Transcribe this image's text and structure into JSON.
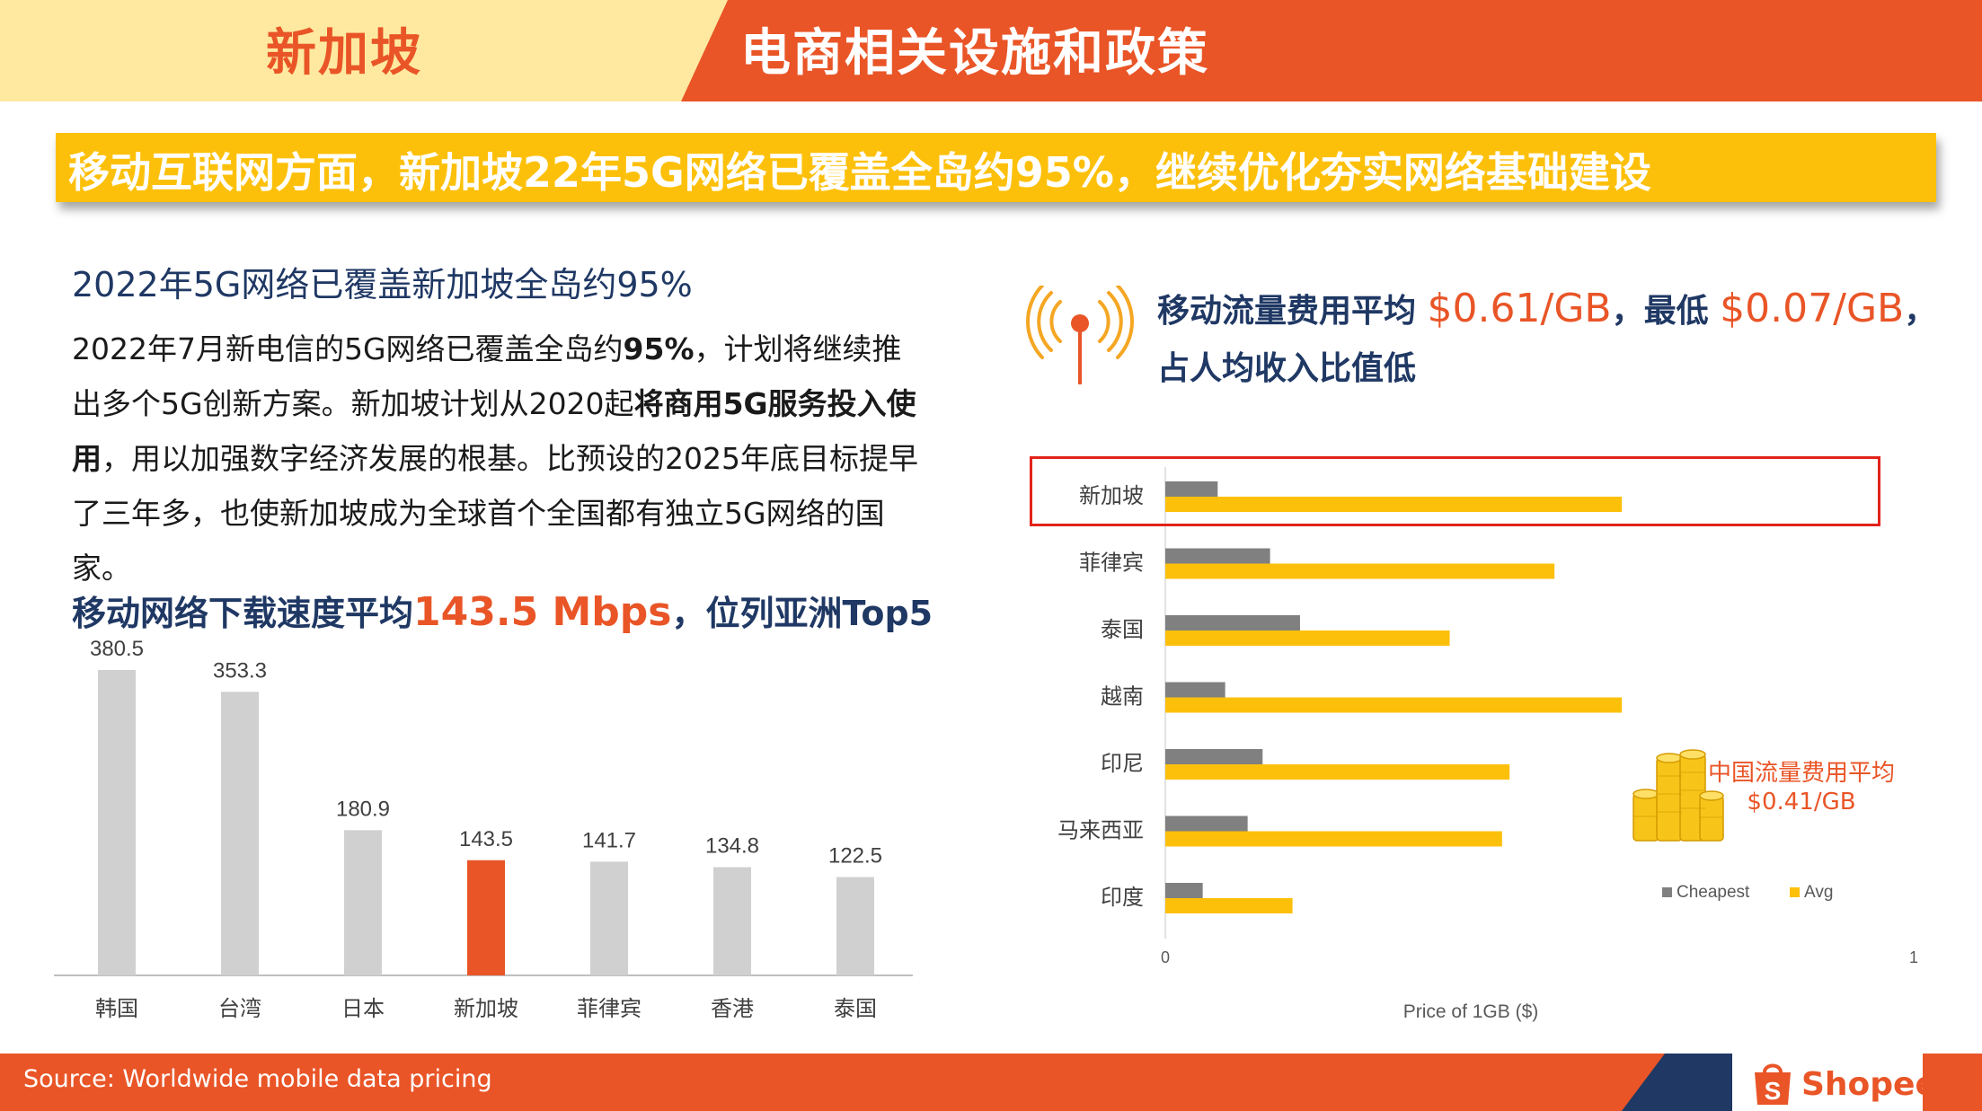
{
  "header": {
    "country": "新加坡",
    "title": "电商相关设施和政策"
  },
  "banner": {
    "text": "移动互联网方面，新加坡22年5G网络已覆盖全岛约95%，继续优化夯实网络基础建设"
  },
  "left": {
    "subheading": "2022年5G网络已覆盖新加坡全岛约95%",
    "para": {
      "p1": "2022年7月新电信的5G网络已覆盖全岛约",
      "b1": "95%",
      "p2": "，计划将继续推出多个5G创新方案。新加坡计划从2020起",
      "b2": "将商用5G服务投入使用",
      "p3": "，用以加强数字经济发展的根基。比预设的2025年底目标提早了三年多，也使新加坡成为全球首个全国都有独立5G网络的国家。"
    },
    "speed_heading_pre": "移动网络下载速度平均",
    "speed_heading_value": "143.5 Mbps",
    "speed_heading_post": "，位列亚洲Top5"
  },
  "right": {
    "fee_line1_pre": "移动流量费用平均 ",
    "fee_avg": "$0.61/GB",
    "fee_mid": "，最低 ",
    "fee_min": "$0.07/GB",
    "fee_line1_post": "，",
    "fee_line2": "占人均收入比值低",
    "china_note_line1": "中国流量费用平均",
    "china_note_line2": "$0.41/GB"
  },
  "footer": {
    "source": "Source: Worldwide mobile data pricing",
    "brand": "Shopee"
  },
  "colors": {
    "orange": "#e95527",
    "yellow": "#fdc00a",
    "navy": "#1f3864",
    "gray_bar": "#d0d0d0",
    "cheapest": "#808080"
  },
  "chart_data": [
    {
      "type": "bar",
      "title": "移动网络下载速度平均143.5 Mbps，位列亚洲Top5",
      "categories": [
        "韩国",
        "台湾",
        "日本",
        "新加坡",
        "菲律宾",
        "香港",
        "泰国"
      ],
      "values": [
        380.5,
        353.3,
        180.9,
        143.5,
        141.7,
        134.8,
        122.5
      ],
      "value_labels": [
        "380.5",
        "353.3",
        "180.9",
        "143.5",
        "141.7",
        "134.8",
        "122.5"
      ],
      "highlight": "新加坡",
      "xlabel": "",
      "ylabel": "",
      "ylim": [
        0,
        400
      ]
    },
    {
      "type": "bar",
      "orientation": "horizontal",
      "categories": [
        "新加坡",
        "菲律宾",
        "泰国",
        "越南",
        "印尼",
        "马来西亚",
        "印度"
      ],
      "series": [
        {
          "name": "Cheapest",
          "values": [
            0.07,
            0.14,
            0.18,
            0.08,
            0.13,
            0.11,
            0.05
          ]
        },
        {
          "name": "Avg",
          "values": [
            0.61,
            0.52,
            0.38,
            0.61,
            0.46,
            0.45,
            0.17
          ]
        }
      ],
      "xlim": [
        0,
        1
      ],
      "xticks": [
        "0",
        "1"
      ],
      "xlabel": "Price of 1GB ($)",
      "legend": "bottom-right",
      "highlight": "新加坡"
    }
  ]
}
